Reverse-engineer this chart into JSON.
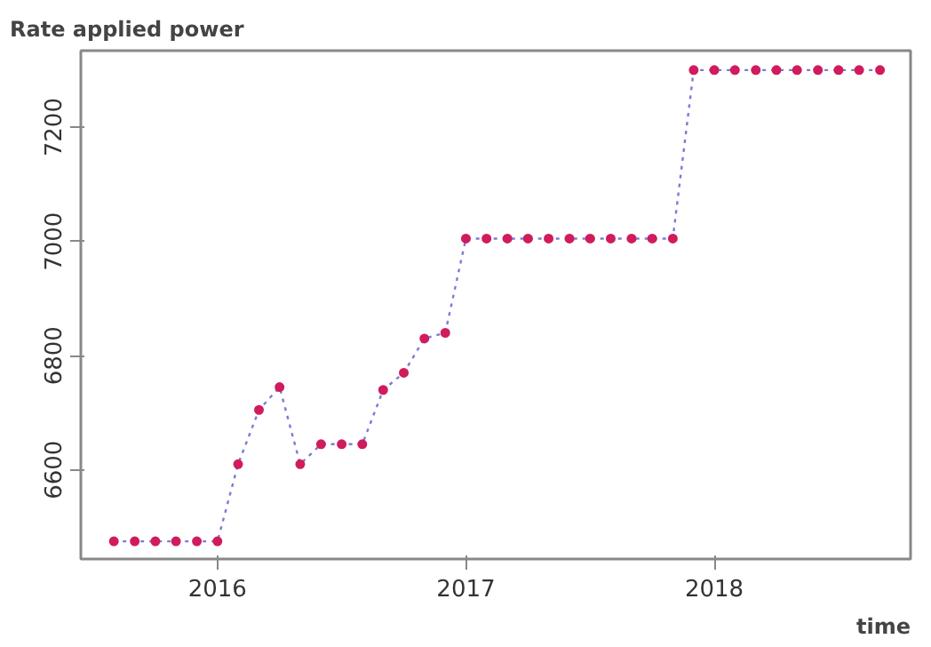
{
  "chart_data": {
    "type": "line",
    "title": "Rate applied power",
    "xlabel": "time",
    "x": [
      2015.583,
      2015.667,
      2015.75,
      2015.833,
      2015.917,
      2016.0,
      2016.083,
      2016.167,
      2016.25,
      2016.333,
      2016.417,
      2016.5,
      2016.583,
      2016.667,
      2016.75,
      2016.833,
      2016.917,
      2017.0,
      2017.083,
      2017.167,
      2017.25,
      2017.333,
      2017.417,
      2017.5,
      2017.583,
      2017.667,
      2017.75,
      2017.833,
      2017.917,
      2018.0,
      2018.083,
      2018.167,
      2018.25,
      2018.333,
      2018.417,
      2018.5,
      2018.583,
      2018.667
    ],
    "series": [
      {
        "color": "#7b7bd6",
        "line_style": "dotted",
        "marker": "none",
        "values": [
          6475,
          6475,
          6475,
          6475,
          6475,
          6475,
          6610,
          6705,
          6745,
          6610,
          6645,
          6645,
          6645,
          6740,
          6770,
          6830,
          6840,
          7005,
          7005,
          7005,
          7005,
          7005,
          7005,
          7005,
          7005,
          7005,
          7005,
          7005,
          7300,
          7300,
          7300,
          7300,
          7300,
          7300,
          7300,
          7300,
          7300,
          7300
        ]
      },
      {
        "type": "scatter",
        "color": "#d01c5c",
        "marker": "circle",
        "values": [
          6475,
          6475,
          6475,
          6475,
          6475,
          6475,
          6610,
          6705,
          6745,
          6610,
          6645,
          6645,
          6645,
          6740,
          6770,
          6830,
          6840,
          7005,
          7005,
          7005,
          7005,
          7005,
          7005,
          7005,
          7005,
          7005,
          7005,
          7005,
          7300,
          7300,
          7300,
          7300,
          7300,
          7300,
          7300,
          7300,
          7300,
          7300
        ]
      }
    ],
    "xlim": [
      2015.45,
      2018.79
    ],
    "ylim": [
      6444,
      7334
    ],
    "xticks": [
      2016,
      2017,
      2018
    ],
    "yticks": [
      6600,
      6800,
      7000,
      7200
    ],
    "grid": false
  }
}
